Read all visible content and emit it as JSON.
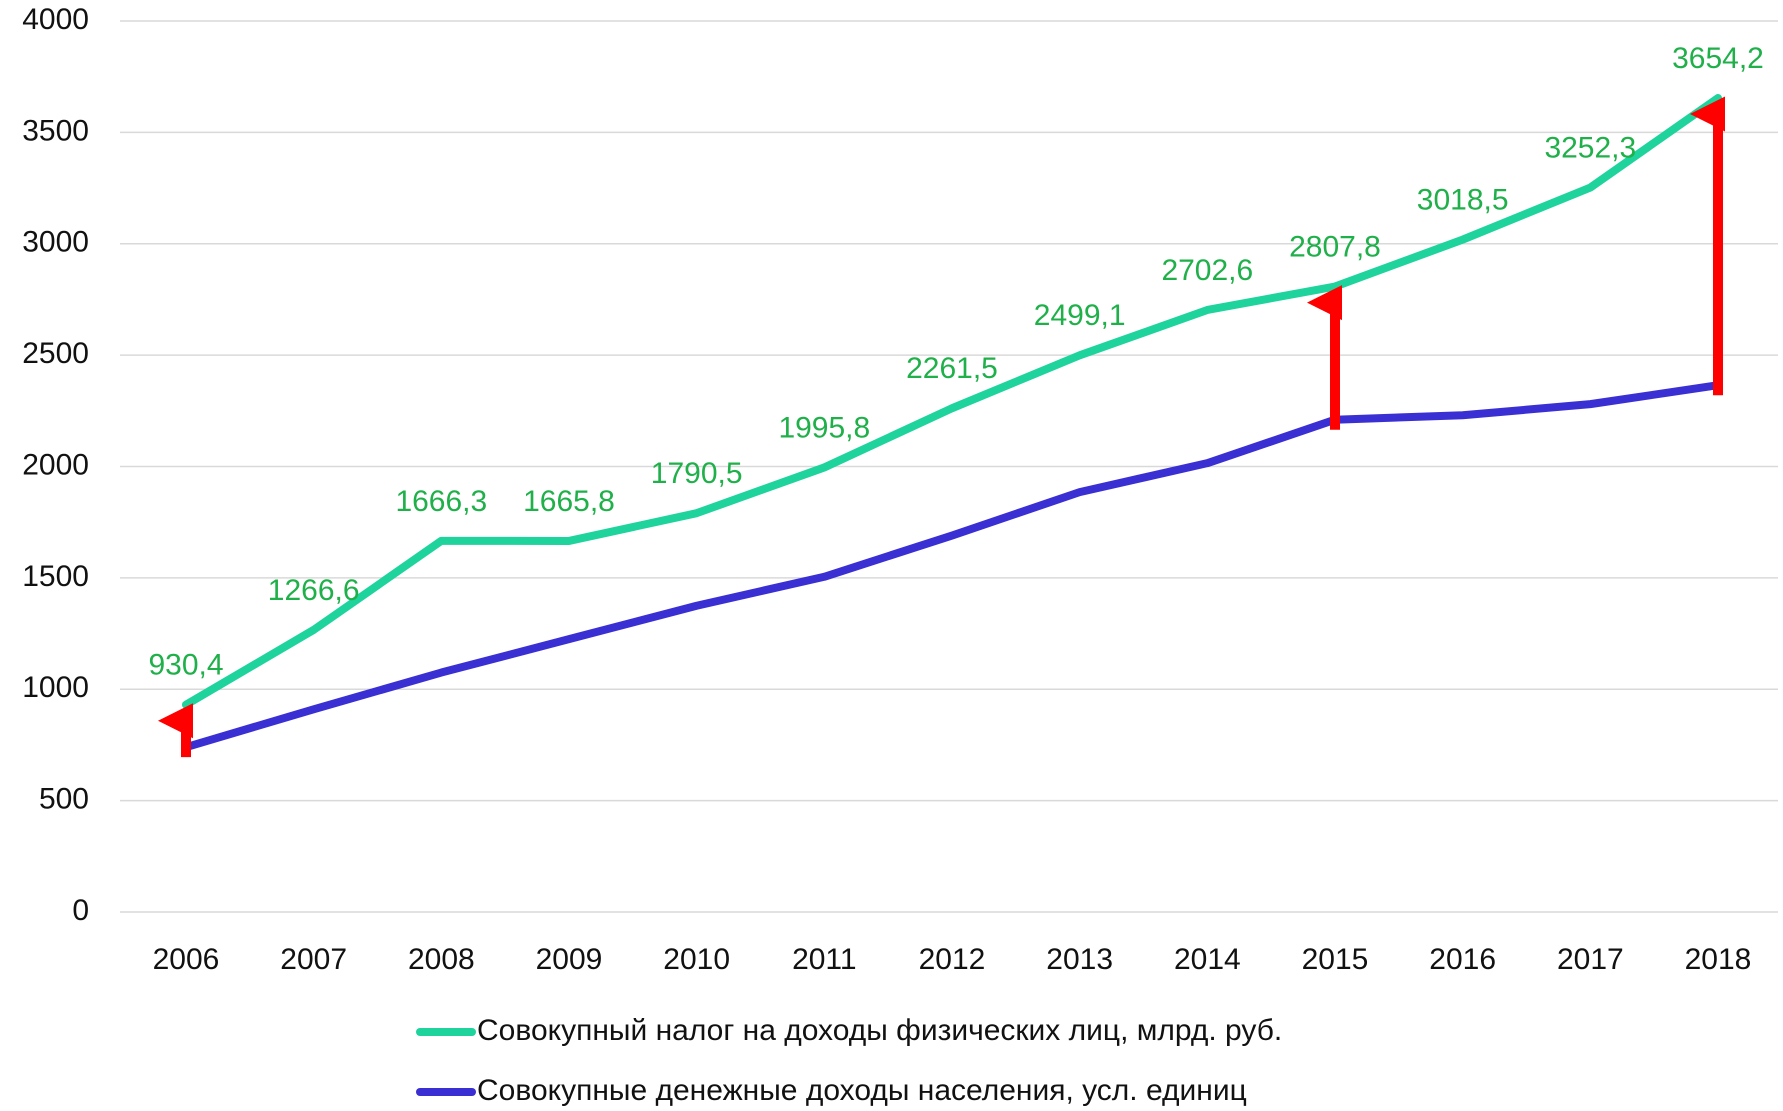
{
  "chart_data": {
    "type": "line",
    "categories": [
      "2006",
      "2007",
      "2008",
      "2009",
      "2010",
      "2011",
      "2012",
      "2013",
      "2014",
      "2015",
      "2016",
      "2017",
      "2018"
    ],
    "series": [
      {
        "name": "Совокупный налог на доходы физических лиц, млрд. руб.",
        "color": "#1fd39c",
        "values": [
          930.4,
          1266.6,
          1666.3,
          1665.8,
          1790.5,
          1995.8,
          2261.5,
          2499.1,
          2702.6,
          2807.8,
          3018.5,
          3252.3,
          3654.2
        ],
        "value_labels": [
          "930,4",
          "1266,6",
          "1666,3",
          "1665,8",
          "1790,5",
          "1995,8",
          "2261,5",
          "2499,1",
          "2702,6",
          "2807,8",
          "3018,5",
          "3252,3",
          "3654,2"
        ],
        "label_color": "#1fb04a"
      },
      {
        "name": "Совокупные денежные доходы населения, усл. единиц",
        "color": "#3a2fd3",
        "values": [
          740,
          910,
          1075,
          1225,
          1375,
          1505,
          1690,
          1885,
          2015,
          2210,
          2230,
          2280,
          2365
        ]
      }
    ],
    "ylim": [
      0,
      4000
    ],
    "yticks": [
      0,
      500,
      1000,
      1500,
      2000,
      2500,
      3000,
      3500,
      4000
    ],
    "grid": true,
    "legend": "bottom"
  }
}
